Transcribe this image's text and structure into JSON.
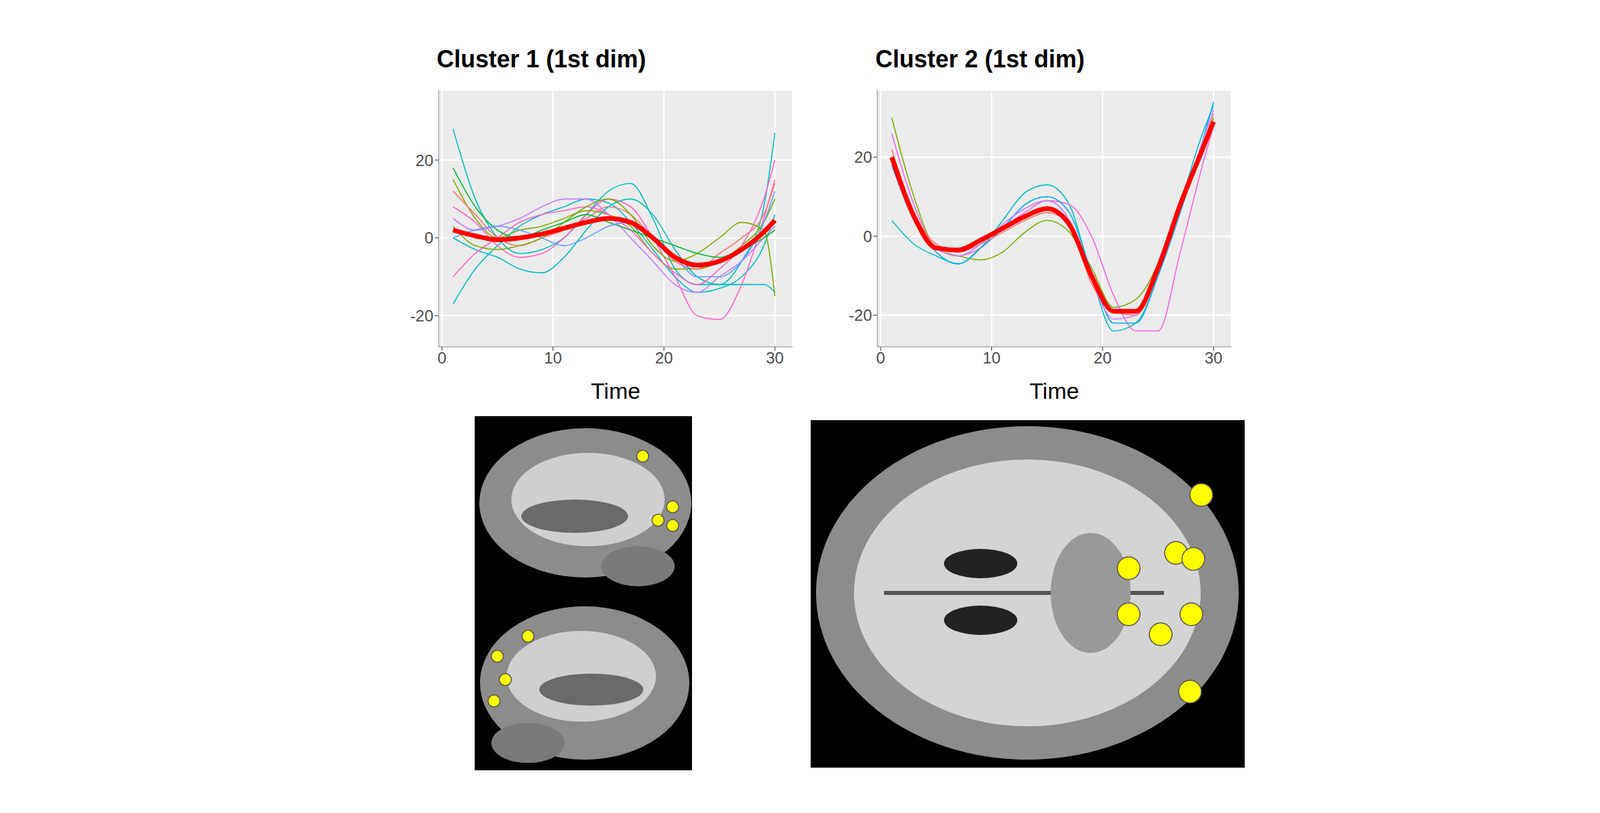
{
  "chart_data": [
    {
      "type": "line",
      "title": "Cluster 1 (1st dim)",
      "x_label": "Time",
      "x": [
        1,
        3,
        5,
        7,
        9,
        11,
        13,
        15,
        17,
        19,
        21,
        23,
        25,
        27,
        29,
        30
      ],
      "xlim": [
        -0.3,
        31.6
      ],
      "xticks": [
        0,
        10,
        20,
        30
      ],
      "ylim": [
        -28,
        38
      ],
      "yticks": [
        -20,
        0,
        20
      ],
      "grid": true,
      "series": [
        {
          "color": "#00BFC4",
          "values": [
            28,
            10,
            0,
            -4,
            -3,
            0,
            6,
            12,
            14,
            5,
            -8,
            -12,
            -12,
            -6,
            8,
            27
          ]
        },
        {
          "color": "#00BFC4",
          "values": [
            -17,
            -8,
            -2,
            3,
            6,
            8,
            10,
            9,
            4,
            -3,
            -10,
            -14,
            -13,
            -10,
            -2,
            6
          ]
        },
        {
          "color": "#FF61C3",
          "values": [
            8,
            4,
            -2,
            -5,
            -4,
            0,
            6,
            10,
            8,
            0,
            -10,
            -20,
            -21,
            -12,
            5,
            15
          ]
        },
        {
          "color": "#7CAE00",
          "values": [
            15,
            5,
            0,
            2,
            3,
            5,
            7,
            6,
            3,
            -4,
            -8,
            -8,
            -6,
            -2,
            4,
            10
          ]
        },
        {
          "color": "#C77CFF",
          "values": [
            5,
            2,
            3,
            5,
            8,
            10,
            10,
            6,
            0,
            -6,
            -12,
            -14,
            -10,
            -6,
            0,
            3
          ]
        },
        {
          "color": "#F8766D",
          "values": [
            12,
            6,
            0,
            -2,
            0,
            2,
            5,
            8,
            6,
            0,
            -6,
            -8,
            -4,
            0,
            6,
            14
          ]
        },
        {
          "color": "#00BFC4",
          "values": [
            0,
            -3,
            -5,
            -8,
            -9,
            -5,
            2,
            8,
            10,
            6,
            -3,
            -10,
            -12,
            -12,
            -12,
            -14
          ]
        },
        {
          "color": "#FF61C3",
          "values": [
            -10,
            -4,
            0,
            4,
            6,
            7,
            8,
            6,
            2,
            -4,
            -9,
            -12,
            -8,
            -2,
            10,
            20
          ]
        },
        {
          "color": "#7CAE00",
          "values": [
            3,
            -2,
            -3,
            -2,
            0,
            4,
            8,
            10,
            6,
            -2,
            -6,
            -4,
            0,
            4,
            2,
            -15
          ]
        },
        {
          "color": "#00BA38",
          "values": [
            18,
            8,
            2,
            0,
            2,
            4,
            6,
            4,
            2,
            0,
            -2,
            -4,
            -5,
            -3,
            0,
            2
          ]
        },
        {
          "color": "#619CFF",
          "values": [
            0,
            2,
            3,
            2,
            0,
            -2,
            0,
            3,
            4,
            0,
            -5,
            -10,
            -10,
            -6,
            4,
            12
          ]
        },
        {
          "color": "#FF0000",
          "values": [
            2,
            0.5,
            -0.5,
            0,
            1,
            2.5,
            4,
            5,
            4,
            0,
            -5,
            -7,
            -6,
            -3,
            1.5,
            4.5
          ]
        }
      ]
    },
    {
      "type": "line",
      "title": "Cluster 2 (1st dim)",
      "x_label": "Time",
      "x": [
        1,
        3,
        5,
        7,
        9,
        11,
        13,
        15,
        17,
        19,
        21,
        23,
        25,
        27,
        29,
        30
      ],
      "xlim": [
        -0.3,
        31.6
      ],
      "xticks": [
        0,
        10,
        20,
        30
      ],
      "ylim": [
        -28,
        37
      ],
      "yticks": [
        -20,
        0,
        20
      ],
      "grid": true,
      "series": [
        {
          "color": "#7CAE00",
          "values": [
            30,
            10,
            -3,
            -5,
            -6,
            -4,
            1,
            4,
            1,
            -8,
            -18,
            -16,
            -7,
            8,
            22,
            30
          ]
        },
        {
          "color": "#00BFC4",
          "values": [
            4,
            -2,
            -5,
            -7,
            -3,
            4,
            11,
            13,
            8,
            -10,
            -24,
            -22,
            -10,
            8,
            26,
            33
          ]
        },
        {
          "color": "#F564E3",
          "values": [
            26,
            8,
            -3,
            -5,
            -3,
            2,
            6,
            9,
            8,
            0,
            -15,
            -24,
            -24,
            -4,
            18,
            28
          ]
        },
        {
          "color": "#00B0F6",
          "values": [
            18,
            4,
            -4,
            -7,
            -3,
            2,
            8,
            10,
            6,
            -9,
            -22,
            -22,
            -10,
            6,
            24,
            34
          ]
        },
        {
          "color": "#F8766D",
          "values": [
            22,
            6,
            -2,
            -4,
            -2,
            1,
            4,
            6,
            3,
            -12,
            -19,
            -20,
            -9,
            8,
            23,
            31
          ]
        },
        {
          "color": "#C77CFF",
          "values": [
            20,
            5,
            -3,
            -5,
            -2,
            3,
            7,
            9,
            4,
            -11,
            -21,
            -20,
            -8,
            7,
            24,
            32
          ]
        },
        {
          "color": "#FF0000",
          "values": [
            20,
            5,
            -3,
            -3.5,
            -1,
            2,
            5,
            7,
            3,
            -10,
            -19,
            -19,
            -8,
            8,
            22,
            29
          ]
        }
      ]
    }
  ]
}
